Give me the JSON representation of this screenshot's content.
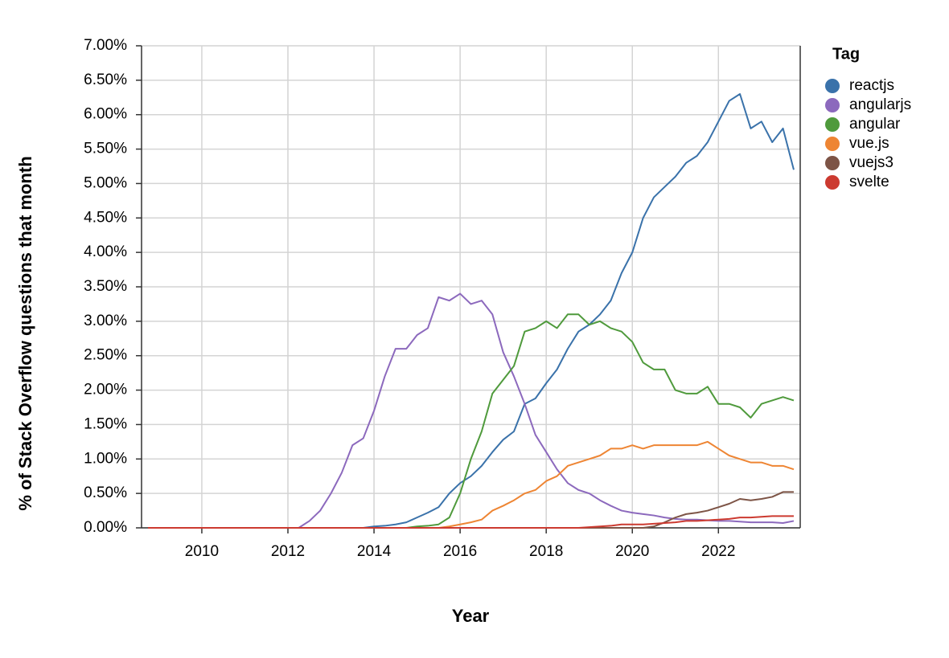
{
  "chart_data": {
    "type": "line",
    "x_label": "Year",
    "y_label": "% of Stack Overflow questions that month",
    "legend_title": "Tag",
    "legend": "right",
    "grid": true,
    "xlim": [
      2008.6,
      2023.9
    ],
    "xticks": [
      2010,
      2012,
      2014,
      2016,
      2018,
      2020,
      2022
    ],
    "ylim": [
      0,
      7
    ],
    "yticks": [
      {
        "value": 0,
        "label": "0.00%"
      },
      {
        "value": 0.5,
        "label": "0.50%"
      },
      {
        "value": 1,
        "label": "1.00%"
      },
      {
        "value": 1.5,
        "label": "1.50%"
      },
      {
        "value": 2,
        "label": "2.00%"
      },
      {
        "value": 2.5,
        "label": "2.50%"
      },
      {
        "value": 3,
        "label": "3.00%"
      },
      {
        "value": 3.5,
        "label": "3.50%"
      },
      {
        "value": 4,
        "label": "4.00%"
      },
      {
        "value": 4.5,
        "label": "4.50%"
      },
      {
        "value": 5,
        "label": "5.00%"
      },
      {
        "value": 5.5,
        "label": "5.50%"
      },
      {
        "value": 6,
        "label": "6.00%"
      },
      {
        "value": 6.5,
        "label": "6.50%"
      },
      {
        "value": 7,
        "label": "7.00%"
      }
    ],
    "x": [
      2008.75,
      2009,
      2009.25,
      2009.5,
      2009.75,
      2010,
      2010.25,
      2010.5,
      2010.75,
      2011,
      2011.25,
      2011.5,
      2011.75,
      2012,
      2012.25,
      2012.5,
      2012.75,
      2013,
      2013.25,
      2013.5,
      2013.75,
      2014,
      2014.25,
      2014.5,
      2014.75,
      2015,
      2015.25,
      2015.5,
      2015.75,
      2016,
      2016.25,
      2016.5,
      2016.75,
      2017,
      2017.25,
      2017.5,
      2017.75,
      2018,
      2018.25,
      2018.5,
      2018.75,
      2019,
      2019.25,
      2019.5,
      2019.75,
      2020,
      2020.25,
      2020.5,
      2020.75,
      2021,
      2021.25,
      2021.5,
      2021.75,
      2022,
      2022.25,
      2022.5,
      2022.75,
      2023,
      2023.25,
      2023.5,
      2023.75
    ],
    "series": [
      {
        "name": "reactjs",
        "color": "#3a72aa",
        "values": [
          0,
          0,
          0,
          0,
          0,
          0,
          0,
          0,
          0,
          0,
          0,
          0,
          0,
          0,
          0,
          0,
          0,
          0,
          0,
          0,
          0,
          0.02,
          0.03,
          0.05,
          0.08,
          0.15,
          0.22,
          0.3,
          0.5,
          0.65,
          0.75,
          0.9,
          1.1,
          1.28,
          1.4,
          1.8,
          1.88,
          2.1,
          2.3,
          2.6,
          2.85,
          2.95,
          3.1,
          3.3,
          3.7,
          4.0,
          4.5,
          4.8,
          4.95,
          5.1,
          5.3,
          5.4,
          5.6,
          5.9,
          6.2,
          6.3,
          5.8,
          5.9,
          5.6,
          5.8,
          5.2
        ]
      },
      {
        "name": "angularjs",
        "color": "#8c69bd",
        "values": [
          0,
          0,
          0,
          0,
          0,
          0,
          0,
          0,
          0,
          0,
          0,
          0,
          0,
          0,
          0,
          0.1,
          0.25,
          0.5,
          0.8,
          1.2,
          1.3,
          1.7,
          2.2,
          2.6,
          2.6,
          2.8,
          2.9,
          3.35,
          3.3,
          3.4,
          3.25,
          3.3,
          3.1,
          2.55,
          2.2,
          1.8,
          1.35,
          1.1,
          0.85,
          0.65,
          0.55,
          0.5,
          0.4,
          0.32,
          0.25,
          0.22,
          0.2,
          0.18,
          0.15,
          0.13,
          0.12,
          0.12,
          0.11,
          0.1,
          0.1,
          0.09,
          0.08,
          0.08,
          0.08,
          0.07,
          0.1
        ]
      },
      {
        "name": "angular",
        "color": "#4f9a3c",
        "values": [
          0,
          0,
          0,
          0,
          0,
          0,
          0,
          0,
          0,
          0,
          0,
          0,
          0,
          0,
          0,
          0,
          0,
          0,
          0,
          0,
          0,
          0,
          0,
          0,
          0,
          0.02,
          0.03,
          0.05,
          0.15,
          0.5,
          1.0,
          1.4,
          1.95,
          2.15,
          2.35,
          2.85,
          2.9,
          3.0,
          2.9,
          3.1,
          3.1,
          2.95,
          3.0,
          2.9,
          2.85,
          2.7,
          2.4,
          2.3,
          2.3,
          2.0,
          1.95,
          1.95,
          2.05,
          1.8,
          1.8,
          1.75,
          1.6,
          1.8,
          1.85,
          1.9,
          1.85
        ]
      },
      {
        "name": "vue.js",
        "color": "#ee8533",
        "values": [
          0,
          0,
          0,
          0,
          0,
          0,
          0,
          0,
          0,
          0,
          0,
          0,
          0,
          0,
          0,
          0,
          0,
          0,
          0,
          0,
          0,
          0,
          0,
          0,
          0,
          0,
          0,
          0,
          0.02,
          0.05,
          0.08,
          0.12,
          0.25,
          0.32,
          0.4,
          0.5,
          0.55,
          0.68,
          0.75,
          0.9,
          0.95,
          1.0,
          1.05,
          1.15,
          1.15,
          1.2,
          1.15,
          1.2,
          1.2,
          1.2,
          1.2,
          1.2,
          1.25,
          1.15,
          1.05,
          1.0,
          0.95,
          0.95,
          0.9,
          0.9,
          0.85
        ]
      },
      {
        "name": "vuejs3",
        "color": "#7d5446",
        "values": [
          0,
          0,
          0,
          0,
          0,
          0,
          0,
          0,
          0,
          0,
          0,
          0,
          0,
          0,
          0,
          0,
          0,
          0,
          0,
          0,
          0,
          0,
          0,
          0,
          0,
          0,
          0,
          0,
          0,
          0,
          0,
          0,
          0,
          0,
          0,
          0,
          0,
          0,
          0,
          0,
          0,
          0,
          0,
          0,
          0,
          0,
          0,
          0.02,
          0.08,
          0.15,
          0.2,
          0.22,
          0.25,
          0.3,
          0.35,
          0.42,
          0.4,
          0.42,
          0.45,
          0.52,
          0.52
        ]
      },
      {
        "name": "svelte",
        "color": "#cc3a30",
        "values": [
          0,
          0,
          0,
          0,
          0,
          0,
          0,
          0,
          0,
          0,
          0,
          0,
          0,
          0,
          0,
          0,
          0,
          0,
          0,
          0,
          0,
          0,
          0,
          0,
          0,
          0,
          0,
          0,
          0,
          0,
          0,
          0,
          0,
          0,
          0,
          0,
          0,
          0,
          0,
          0,
          0,
          0.01,
          0.02,
          0.03,
          0.05,
          0.05,
          0.05,
          0.06,
          0.07,
          0.08,
          0.1,
          0.1,
          0.11,
          0.12,
          0.13,
          0.15,
          0.15,
          0.16,
          0.17,
          0.17,
          0.17
        ]
      }
    ]
  }
}
